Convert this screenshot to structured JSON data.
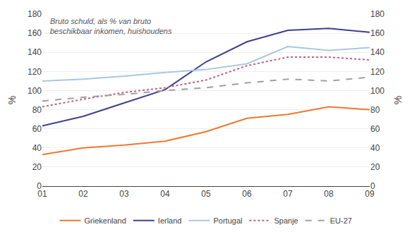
{
  "chart_data": {
    "type": "line",
    "categories": [
      "01",
      "02",
      "03",
      "04",
      "05",
      "06",
      "07",
      "08",
      "09"
    ],
    "series": [
      {
        "name": "Griekenland",
        "color": "#f07830",
        "line_style": "solid",
        "values": [
          33,
          40,
          43,
          47,
          57,
          71,
          75,
          83,
          80
        ]
      },
      {
        "name": "Ierland",
        "color": "#3f3f8f",
        "line_style": "solid",
        "values": [
          63,
          73,
          87,
          101,
          130,
          151,
          163,
          165,
          161
        ]
      },
      {
        "name": "Portugal",
        "color": "#a8c8e0",
        "line_style": "solid",
        "values": [
          110,
          112,
          115,
          119,
          122,
          128,
          146,
          142,
          145
        ]
      },
      {
        "name": "Spanje",
        "color": "#c06080",
        "line_style": "dot",
        "values": [
          83,
          91,
          98,
          103,
          111,
          126,
          135,
          135,
          132
        ]
      },
      {
        "name": "EU-27",
        "color": "#a0a0a0",
        "line_style": "dash",
        "values": [
          89,
          93,
          96,
          100,
          103,
          108,
          112,
          110,
          114
        ]
      }
    ],
    "ylabel": "%",
    "y2label": "%",
    "ylim": [
      0,
      180
    ],
    "yticks": [
      0,
      20,
      40,
      60,
      80,
      100,
      120,
      140,
      160,
      180
    ],
    "y2lim": [
      0,
      180
    ],
    "y2ticks": [
      0,
      20,
      40,
      60,
      80,
      100,
      120,
      140,
      160,
      180
    ],
    "annotation": "Bruto schuld, als % van bruto\nbeschikbaar inkomen, huishoudens",
    "grid": true,
    "legend": "bottom"
  }
}
